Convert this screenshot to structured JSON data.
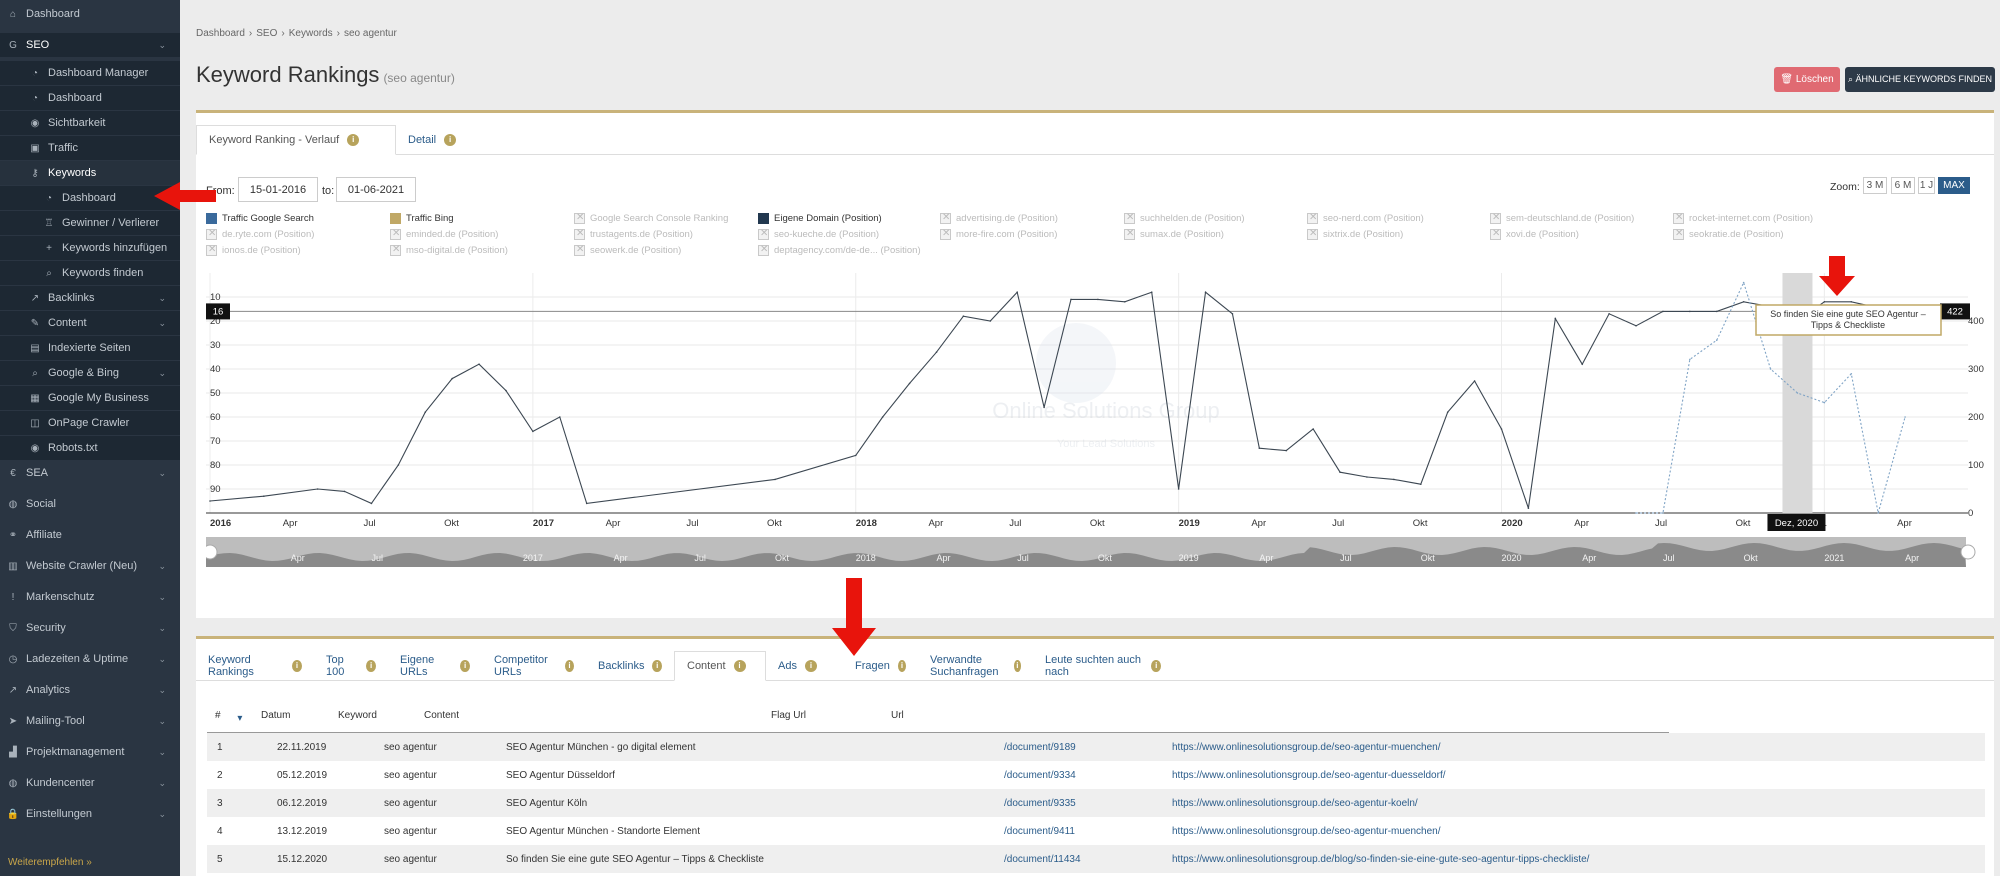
{
  "sidebar": {
    "items": [
      {
        "label": "Dashboard",
        "icon": "home-icon",
        "glyph": "⌂"
      },
      {
        "label": "SEO",
        "icon": "google-icon",
        "glyph": "G"
      },
      {
        "label": "Dashboard Manager",
        "icon": "dashboard-icon",
        "glyph": "◔"
      },
      {
        "label": "Dashboard",
        "icon": "dashboard-icon",
        "glyph": "◔"
      },
      {
        "label": "Sichtbarkeit",
        "icon": "eye-icon",
        "glyph": "◉"
      },
      {
        "label": "Traffic",
        "icon": "car-icon",
        "glyph": "▣"
      },
      {
        "label": "Keywords",
        "icon": "keys-icon",
        "glyph": "⚷"
      },
      {
        "label": "Dashboard",
        "icon": "dashboard-icon",
        "glyph": "◔"
      },
      {
        "label": "Gewinner / Verlierer",
        "icon": "trophy-icon",
        "glyph": "♖"
      },
      {
        "label": "Keywords hinzufügen",
        "icon": "plus-icon",
        "glyph": "+"
      },
      {
        "label": "Keywords finden",
        "icon": "search-icon",
        "glyph": "⌕"
      },
      {
        "label": "Backlinks",
        "icon": "external-link-icon",
        "glyph": "↗"
      },
      {
        "label": "Content",
        "icon": "pencil-icon",
        "glyph": "✎"
      },
      {
        "label": "Indexierte Seiten",
        "icon": "file-icon",
        "glyph": "▤"
      },
      {
        "label": "Google & Bing",
        "icon": "search-icon",
        "glyph": "⌕"
      },
      {
        "label": "Google My Business",
        "icon": "store-icon",
        "glyph": "▦"
      },
      {
        "label": "OnPage Crawler",
        "icon": "crawler-icon",
        "glyph": "◫"
      },
      {
        "label": "Robots.txt",
        "icon": "eye-icon",
        "glyph": "◉"
      },
      {
        "label": "SEA",
        "icon": "euro-icon",
        "glyph": "€"
      },
      {
        "label": "Social",
        "icon": "users-icon",
        "glyph": "◍"
      },
      {
        "label": "Affiliate",
        "icon": "handshake-icon",
        "glyph": "⚭"
      },
      {
        "label": "Website Crawler (Neu)",
        "icon": "chart-icon",
        "glyph": "▥"
      },
      {
        "label": "Markenschutz",
        "icon": "exclamation-icon",
        "glyph": "!"
      },
      {
        "label": "Security",
        "icon": "shield-icon",
        "glyph": "⛉"
      },
      {
        "label": "Ladezeiten & Uptime",
        "icon": "clock-icon",
        "glyph": "◷"
      },
      {
        "label": "Analytics",
        "icon": "line-chart-icon",
        "glyph": "↗"
      },
      {
        "label": "Mailing-Tool",
        "icon": "paper-plane-icon",
        "glyph": "➤"
      },
      {
        "label": "Projektmanagement",
        "icon": "building-icon",
        "glyph": "▟"
      },
      {
        "label": "Kundencenter",
        "icon": "users-icon",
        "glyph": "◍"
      },
      {
        "label": "Einstellungen",
        "icon": "lock-icon",
        "glyph": "🔒"
      }
    ],
    "footer": "Weiterempfehlen »"
  },
  "breadcrumb": [
    "Dashboard",
    "›",
    "SEO",
    "›",
    "Keywords",
    "›",
    "seo agentur"
  ],
  "page": {
    "title": "Keyword Rankings",
    "keyword": "(seo agentur)"
  },
  "buttons": {
    "delete": "🗑 Löschen",
    "find": "⌕ ÄHNLICHE KEYWORDS FINDEN"
  },
  "tabs_top": [
    "Keyword Ranking - Verlauf",
    "Detail"
  ],
  "date_filter": {
    "from_label": "From:",
    "from": "15-01-2016",
    "to_label": "to:",
    "to": "01-06-2021"
  },
  "zoom": {
    "label": "Zoom:",
    "options": [
      "3 M",
      "6 M",
      "1 J",
      "MAX"
    ],
    "active": "MAX"
  },
  "legend": [
    "Traffic Google Search",
    "Traffic Bing",
    "Google Search Console Ranking",
    "Eigene Domain (Position)",
    "advertising.de (Position)",
    "suchhelden.de (Position)",
    "seo-nerd.com (Position)",
    "sem-deutschland.de (Position)",
    "rocket-internet.com (Position)",
    "de.ryte.com (Position)",
    "eminded.de (Position)",
    "trustagents.de (Position)",
    "seo-kueche.de (Position)",
    "more-fire.com (Position)",
    "sumax.de (Position)",
    "sixtrix.de (Position)",
    "xovi.de (Position)",
    "seokratie.de (Position)",
    "ionos.de (Position)",
    "mso-digital.de (Position)",
    "seowerk.de (Position)",
    "deptagency.com/de-de... (Position)"
  ],
  "legend_colors": {
    "google": "#3a6a9c",
    "bing": "#c0a866",
    "own": "#22384f"
  },
  "watermark": {
    "line1": "Online Solutions Group",
    "line2": "Your Lead Solutions"
  },
  "chart_data": {
    "type": "line",
    "x_ticks": [
      "2016",
      "Apr",
      "Jul",
      "Okt",
      "2017",
      "Apr",
      "Jul",
      "Okt",
      "2018",
      "Apr",
      "Jul",
      "Okt",
      "2019",
      "Apr",
      "Jul",
      "Okt",
      "2020",
      "Apr",
      "Jul",
      "Okt",
      "21",
      "Apr"
    ],
    "y_left": {
      "ticks": [
        "10",
        "20",
        "30",
        "40",
        "50",
        "60",
        "70",
        "80",
        "90"
      ],
      "reversed": true,
      "ylim": [
        0,
        100
      ]
    },
    "y_right": {
      "ticks": [
        "0",
        "100",
        "200",
        "300",
        "400"
      ],
      "ylim": [
        0,
        500
      ]
    },
    "navigator_labels": [
      "Apr",
      "Jul",
      "2017",
      "Apr",
      "Jul",
      "Okt",
      "2018",
      "Apr",
      "Jul",
      "Okt",
      "2019",
      "Apr",
      "Jul",
      "Okt",
      "2020",
      "Apr",
      "Jul",
      "Okt",
      "2021",
      "Apr"
    ],
    "left_flag": "16",
    "right_flag": "422",
    "hover_date": "Dez, 2020",
    "tooltip": "So finden Sie eine gute SEO Agentur – Tipps & Checkliste",
    "flag_marker": "C",
    "series": [
      {
        "name": "Eigene Domain (Position)",
        "values": [
          95,
          93,
          90,
          91,
          96,
          80,
          58,
          44,
          38,
          49,
          66,
          60,
          96,
          86,
          76,
          60,
          46,
          33,
          18,
          20,
          8,
          56,
          11,
          11,
          12,
          8,
          90,
          8,
          17,
          73,
          74,
          65,
          83,
          85,
          86,
          88,
          58,
          45,
          65,
          98,
          19,
          38,
          17,
          22,
          16,
          16,
          16,
          12,
          14,
          20,
          12,
          12,
          17
        ],
        "x": [
          "2016-01",
          "2016-03",
          "2016-05",
          "2016-06",
          "2016-07",
          "2016-08",
          "2016-09",
          "2016-10",
          "2016-11",
          "2016-12",
          "2017-01",
          "2017-02",
          "2017-03",
          "2017-10",
          "2018-01",
          "2018-02",
          "2018-03",
          "2018-04",
          "2018-05",
          "2018-06",
          "2018-07",
          "2018-08",
          "2018-09",
          "2018-10",
          "2018-11",
          "2018-12",
          "2019-01",
          "2019-02",
          "2019-03",
          "2019-04",
          "2019-05",
          "2019-06",
          "2019-07",
          "2019-08",
          "2019-09",
          "2019-10",
          "2019-11",
          "2019-12",
          "2020-01",
          "2020-02",
          "2020-03",
          "2020-04",
          "2020-05",
          "2020-06",
          "2020-07",
          "2020-08",
          "2020-09",
          "2020-10",
          "2020-11",
          "2020-12",
          "2021-01",
          "2021-02",
          "2021-04"
        ]
      },
      {
        "name": "Traffic Google Search",
        "values": [
          0,
          0,
          320,
          360,
          480,
          300,
          250,
          230,
          290,
          0,
          200
        ],
        "x": [
          "2020-06",
          "2020-07",
          "2020-08",
          "2020-09",
          "2020-10",
          "2020-11",
          "2020-12",
          "2021-01",
          "2021-02",
          "2021-03",
          "2021-04"
        ]
      }
    ]
  },
  "tabs_bottom": [
    "Keyword Rankings",
    "Top 100",
    "Eigene URLs",
    "Competitor URLs",
    "Backlinks",
    "Content",
    "Ads",
    "Fragen",
    "Verwandte Suchanfragen",
    "Leute suchten auch nach"
  ],
  "table": {
    "headers": [
      "#",
      "Datum",
      "Keyword",
      "Content",
      "Flag Url",
      "Url"
    ],
    "rows": [
      [
        "1",
        "22.11.2019",
        "seo agentur",
        "SEO Agentur München - go digital element",
        "/document/9189",
        "https://www.onlinesolutionsgroup.de/seo-agentur-muenchen/"
      ],
      [
        "2",
        "05.12.2019",
        "seo agentur",
        "SEO Agentur Düsseldorf",
        "/document/9334",
        "https://www.onlinesolutionsgroup.de/seo-agentur-duesseldorf/"
      ],
      [
        "3",
        "06.12.2019",
        "seo agentur",
        "SEO Agentur Köln",
        "/document/9335",
        "https://www.onlinesolutionsgroup.de/seo-agentur-koeln/"
      ],
      [
        "4",
        "13.12.2019",
        "seo agentur",
        "SEO Agentur München - Standorte Element",
        "/document/9411",
        "https://www.onlinesolutionsgroup.de/seo-agentur-muenchen/"
      ],
      [
        "5",
        "15.12.2020",
        "seo agentur",
        "So finden Sie eine gute SEO Agentur – Tipps & Checkliste",
        "/document/11434",
        "https://www.onlinesolutionsgroup.de/blog/so-finden-sie-eine-gute-seo-agentur-tipps-checkliste/"
      ]
    ]
  },
  "annotation_color": "#e8140c"
}
